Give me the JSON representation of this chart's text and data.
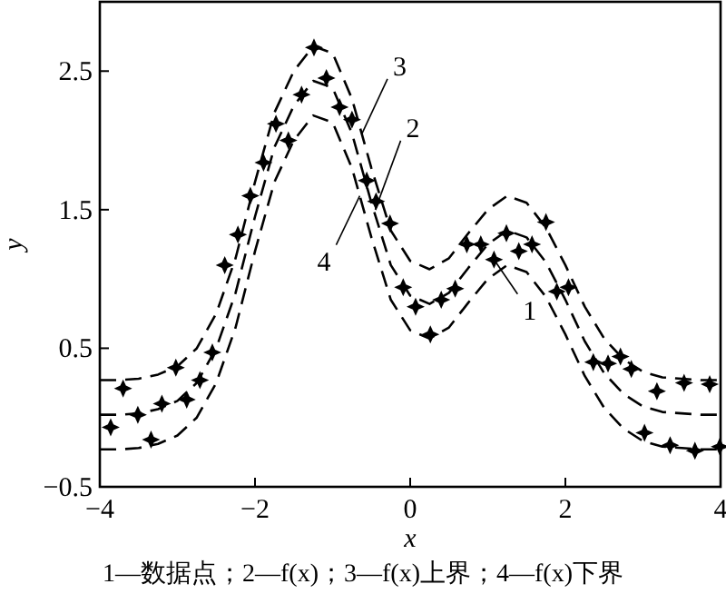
{
  "chart_data": {
    "type": "line",
    "xlabel": "x",
    "ylabel": "y",
    "xlim": [
      -4,
      4
    ],
    "ylim": [
      -0.5,
      3.0
    ],
    "xticks": [
      {
        "value": -4,
        "label": "−4"
      },
      {
        "value": -2,
        "label": "−2"
      },
      0,
      2,
      4
    ],
    "yticks": [
      {
        "value": -0.5,
        "label": "−0.5"
      },
      0.5,
      1.5,
      2.5
    ],
    "grid": false,
    "line_style": "dashed",
    "series": [
      {
        "type": "scatter",
        "marker": "star",
        "color": "#000000",
        "x": [
          -3.86,
          -3.7,
          -3.51,
          -3.34,
          -3.2,
          -3.02,
          -2.88,
          -2.71,
          -2.55,
          -2.39,
          -2.22,
          -2.06,
          -1.89,
          -1.73,
          -1.57,
          -1.4,
          -1.24,
          -1.08,
          -0.91,
          -0.75,
          -0.56,
          -0.44,
          -0.26,
          -0.09,
          0.07,
          0.26,
          0.4,
          0.58,
          0.73,
          0.91,
          1.08,
          1.24,
          1.4,
          1.57,
          1.75,
          1.89,
          2.04,
          2.36,
          2.55,
          2.71,
          2.85,
          3.02,
          3.18,
          3.35,
          3.53,
          3.67,
          3.86,
          3.99
        ],
        "values": [
          -0.07,
          0.21,
          0.02,
          -0.16,
          0.1,
          0.36,
          0.13,
          0.27,
          0.47,
          1.1,
          1.32,
          1.6,
          1.84,
          2.12,
          2.0,
          2.33,
          2.67,
          2.45,
          2.24,
          2.15,
          1.71,
          1.56,
          1.4,
          0.94,
          0.8,
          0.6,
          0.85,
          0.93,
          1.25,
          1.25,
          1.14,
          1.33,
          1.2,
          1.25,
          1.41,
          0.91,
          0.94,
          0.4,
          0.39,
          0.44,
          0.35,
          -0.11,
          0.19,
          -0.2,
          0.25,
          -0.24,
          0.24,
          -0.21
        ]
      },
      {
        "color": "#000000",
        "x": [
          -4,
          -3.75,
          -3.5,
          -3.25,
          -3,
          -2.75,
          -2.5,
          -2.25,
          -2,
          -1.75,
          -1.5,
          -1.25,
          -1,
          -0.75,
          -0.5,
          -0.25,
          0,
          0.25,
          0.5,
          0.75,
          1,
          1.25,
          1.5,
          1.75,
          2,
          2.25,
          2.5,
          2.75,
          3,
          3.25,
          3.5,
          3.75,
          4
        ],
        "values": [
          0.02,
          0.02,
          0.03,
          0.06,
          0.12,
          0.25,
          0.5,
          0.9,
          1.45,
          1.95,
          2.25,
          2.43,
          2.38,
          2.05,
          1.55,
          1.1,
          0.88,
          0.82,
          0.9,
          1.08,
          1.25,
          1.35,
          1.3,
          1.12,
          0.85,
          0.55,
          0.32,
          0.17,
          0.08,
          0.04,
          0.03,
          0.02,
          0.02
        ]
      },
      {
        "color": "#000000",
        "x": [
          -4,
          -3.75,
          -3.5,
          -3.25,
          -3,
          -2.75,
          -2.5,
          -2.25,
          -2,
          -1.75,
          -1.5,
          -1.25,
          -1,
          -0.75,
          -0.5,
          -0.25,
          0,
          0.25,
          0.5,
          0.75,
          1,
          1.25,
          1.5,
          1.75,
          2,
          2.25,
          2.5,
          2.75,
          3,
          3.25,
          3.5,
          3.75,
          4
        ],
        "values": [
          0.27,
          0.27,
          0.28,
          0.31,
          0.37,
          0.5,
          0.75,
          1.15,
          1.7,
          2.2,
          2.5,
          2.68,
          2.63,
          2.3,
          1.8,
          1.35,
          1.13,
          1.07,
          1.15,
          1.33,
          1.5,
          1.6,
          1.55,
          1.37,
          1.1,
          0.8,
          0.57,
          0.42,
          0.33,
          0.29,
          0.28,
          0.27,
          0.27
        ]
      },
      {
        "color": "#000000",
        "x": [
          -4,
          -3.75,
          -3.5,
          -3.25,
          -3,
          -2.75,
          -2.5,
          -2.25,
          -2,
          -1.75,
          -1.5,
          -1.25,
          -1,
          -0.75,
          -0.5,
          -0.25,
          0,
          0.25,
          0.5,
          0.75,
          1,
          1.25,
          1.5,
          1.75,
          2,
          2.25,
          2.5,
          2.75,
          3,
          3.25,
          3.5,
          3.75,
          4
        ],
        "values": [
          -0.23,
          -0.23,
          -0.22,
          -0.19,
          -0.13,
          0.0,
          0.25,
          0.65,
          1.2,
          1.7,
          2.0,
          2.18,
          2.13,
          1.8,
          1.3,
          0.85,
          0.63,
          0.57,
          0.65,
          0.83,
          1.0,
          1.1,
          1.05,
          0.87,
          0.6,
          0.3,
          0.07,
          -0.08,
          -0.17,
          -0.21,
          -0.22,
          -0.23,
          -0.23
        ]
      }
    ],
    "annotations": [
      {
        "text": "1",
        "x": 1.08,
        "y": 1.14
      },
      {
        "text": "2",
        "x": -0.45,
        "y": 1.5
      },
      {
        "text": "3",
        "x": -0.62,
        "y": 2.05
      },
      {
        "text": "4",
        "x": -0.65,
        "y": 1.6
      },
      "1—数据点；2—f(x)；3—f(x)上界；4—f(x)下界"
    ]
  }
}
